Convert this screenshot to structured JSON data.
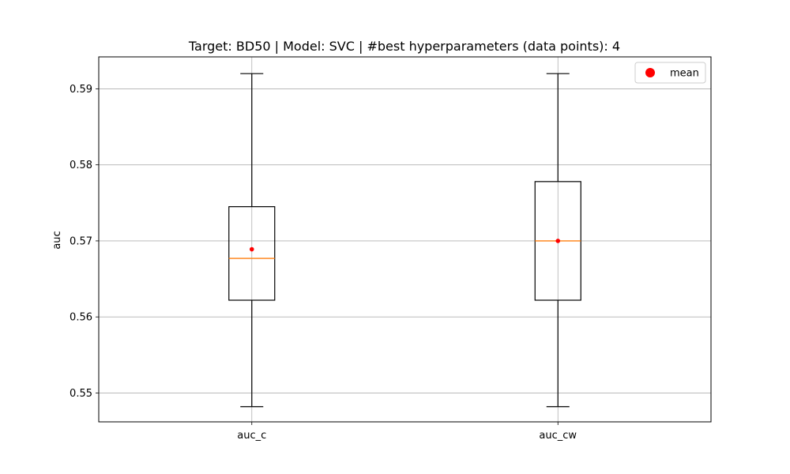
{
  "chart_data": {
    "type": "box",
    "title": "Target: BD50 | Model: SVC | #best hyperparameters (data points): 4",
    "xlabel": "",
    "ylabel": "auc",
    "categories": [
      "auc_c",
      "auc_cw"
    ],
    "ylim": [
      0.5462,
      0.5942
    ],
    "yticks": [
      "0.55",
      "0.56",
      "0.57",
      "0.58",
      "0.59"
    ],
    "grid": true,
    "legend": {
      "position": "top-right",
      "entries": [
        {
          "label": "mean",
          "marker": "circle",
          "color": "#ff0000"
        }
      ]
    },
    "boxes": [
      {
        "name": "auc_c",
        "whisker_low": 0.5482,
        "q1": 0.5622,
        "median": 0.5677,
        "q3": 0.5745,
        "whisker_high": 0.592,
        "mean": 0.5689
      },
      {
        "name": "auc_cw",
        "whisker_low": 0.5482,
        "q1": 0.5622,
        "median": 0.57,
        "q3": 0.5778,
        "whisker_high": 0.592,
        "mean": 0.57
      }
    ],
    "colors": {
      "box": "#000000",
      "median": "#ff7f0e",
      "mean": "#ff0000",
      "grid": "#b0b0b0"
    }
  }
}
